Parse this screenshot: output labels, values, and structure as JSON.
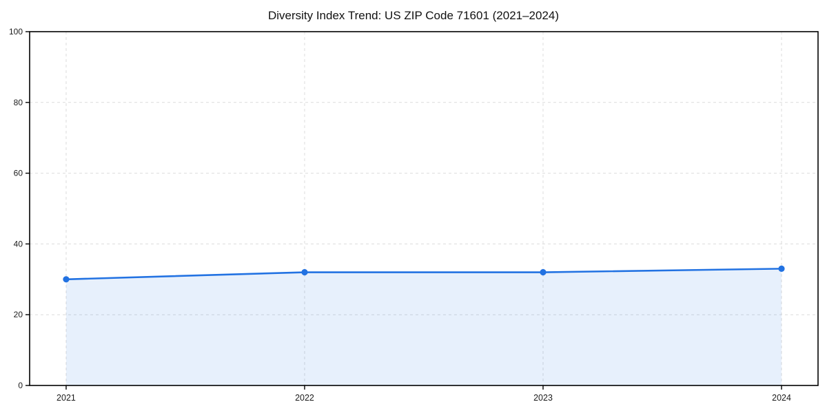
{
  "title": "Diversity Index Trend: US ZIP Code 71601 (2021–2024)",
  "colors": {
    "line": "#2272e2",
    "fill": "#2272e2",
    "fill_opacity": 0.11,
    "grid": "#dcdcdc",
    "spine": "#000000",
    "tick_text": "#1a1a1a",
    "background": "#ffffff"
  },
  "chart_data": {
    "type": "area",
    "title": "Diversity Index Trend: US ZIP Code 71601 (2021–2024)",
    "x": [
      "2021",
      "2022",
      "2023",
      "2024"
    ],
    "series": [
      {
        "name": "Diversity Index",
        "values": [
          30,
          32,
          32,
          33
        ]
      }
    ],
    "xlabel": "",
    "ylabel": "",
    "ylim": [
      0,
      100
    ],
    "yticks": [
      0,
      20,
      40,
      60,
      80,
      100
    ],
    "xticks": [
      "2021",
      "2022",
      "2023",
      "2024"
    ],
    "grid": true,
    "grid_style": "dashed",
    "legend_position": "none",
    "marker": "circle"
  }
}
